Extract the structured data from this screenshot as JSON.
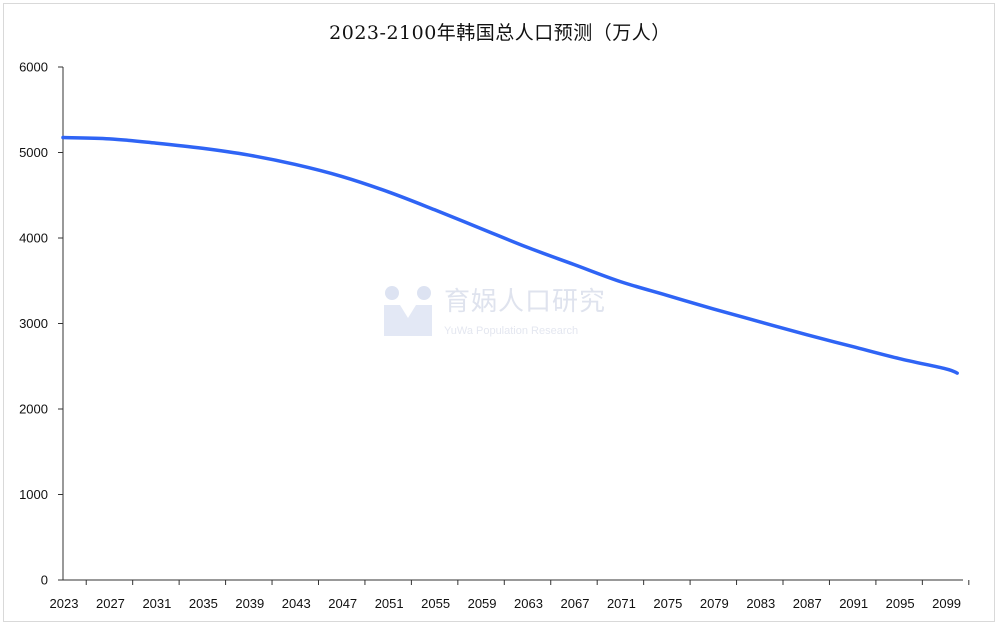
{
  "chart_data": {
    "type": "line",
    "title": "2023-2100年韩国总人口预测（万人）",
    "xlabel": "",
    "ylabel": "",
    "ylim": [
      0,
      6000
    ],
    "yticks": [
      0,
      1000,
      2000,
      3000,
      4000,
      5000,
      6000
    ],
    "xticks": [
      "2023",
      "2027",
      "2031",
      "2035",
      "2039",
      "2043",
      "2047",
      "2051",
      "2055",
      "2059",
      "2063",
      "2067",
      "2071",
      "2075",
      "2079",
      "2083",
      "2087",
      "2091",
      "2095",
      "2099"
    ],
    "grid": false,
    "legend": "none",
    "series": [
      {
        "color": "#2f64f5",
        "x": [
          2023,
          2027,
          2031,
          2035,
          2039,
          2043,
          2047,
          2051,
          2055,
          2059,
          2063,
          2067,
          2071,
          2075,
          2079,
          2083,
          2087,
          2091,
          2095,
          2099,
          2100
        ],
        "values": [
          5175,
          5160,
          5110,
          5050,
          4970,
          4860,
          4720,
          4540,
          4330,
          4110,
          3890,
          3690,
          3490,
          3330,
          3170,
          3020,
          2870,
          2730,
          2590,
          2470,
          2420
        ]
      }
    ]
  },
  "watermark": {
    "main": "育娲人口研究",
    "sub": "YuWa Population Research",
    "icon": "yuwa-logo-icon"
  }
}
